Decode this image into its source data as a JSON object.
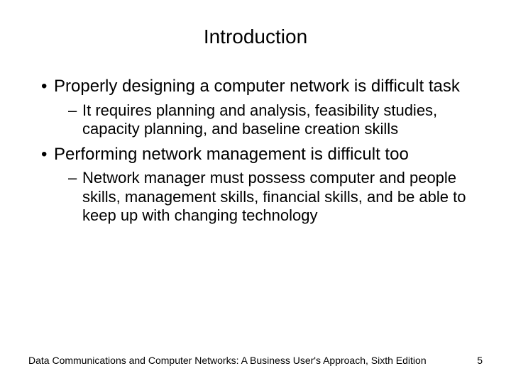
{
  "title": "Introduction",
  "bullets": [
    {
      "level": 1,
      "text": "Properly designing a computer network is difficult task"
    },
    {
      "level": 2,
      "text": "It requires planning and analysis, feasibility studies, capacity planning, and baseline creation skills"
    },
    {
      "level": 1,
      "text": "Performing network management is difficult too"
    },
    {
      "level": 2,
      "text": "Network manager must possess computer and people skills, management skills, financial skills, and be able to keep up with changing technology"
    }
  ],
  "footer": {
    "source": "Data Communications and Computer Networks: A Business User's Approach, Sixth Edition",
    "page": "5"
  },
  "style": {
    "background_color": "#ffffff",
    "text_color": "#000000",
    "title_fontsize": 28,
    "l1_fontsize": 24,
    "l2_fontsize": 22,
    "footer_fontsize": 14,
    "font_family": "Arial"
  }
}
